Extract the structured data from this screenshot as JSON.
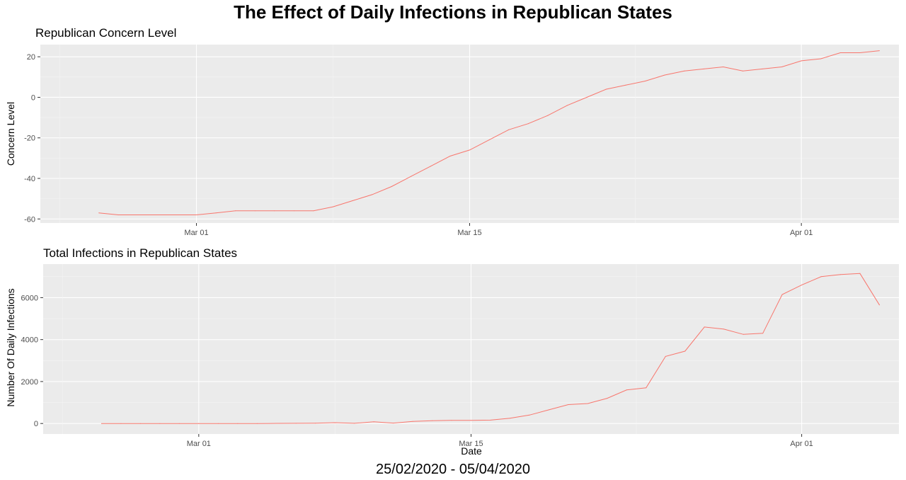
{
  "title": "The Effect of Daily Infections in Republican States",
  "footer": "25/02/2020 - 05/04/2020",
  "colors": {
    "line": "#F8766D",
    "panel": "#EBEBEB",
    "grid_major": "#FFFFFF",
    "grid_minor": "#F5F5F5"
  },
  "chart_data": [
    {
      "type": "line",
      "title": "Republican Concern Level",
      "xlabel": "",
      "ylabel": "Concern Level",
      "xlim": [
        "2020-02-22",
        "2020-04-06"
      ],
      "ylim": [
        -62,
        26
      ],
      "x_ticks": [
        "Mar 01",
        "Mar 15",
        "Apr 01"
      ],
      "y_ticks": [
        20,
        0,
        -20,
        -40,
        -60
      ],
      "grid": true,
      "x": [
        "2020-02-25",
        "2020-02-26",
        "2020-02-27",
        "2020-02-28",
        "2020-02-29",
        "2020-03-01",
        "2020-03-02",
        "2020-03-03",
        "2020-03-04",
        "2020-03-05",
        "2020-03-06",
        "2020-03-07",
        "2020-03-08",
        "2020-03-09",
        "2020-03-10",
        "2020-03-11",
        "2020-03-12",
        "2020-03-13",
        "2020-03-14",
        "2020-03-15",
        "2020-03-16",
        "2020-03-17",
        "2020-03-18",
        "2020-03-19",
        "2020-03-20",
        "2020-03-21",
        "2020-03-22",
        "2020-03-23",
        "2020-03-24",
        "2020-03-25",
        "2020-03-26",
        "2020-03-27",
        "2020-03-28",
        "2020-03-29",
        "2020-03-30",
        "2020-03-31",
        "2020-04-01",
        "2020-04-02",
        "2020-04-03",
        "2020-04-04",
        "2020-04-05"
      ],
      "values": [
        -57,
        -58,
        -58,
        -58,
        -58,
        -58,
        -57,
        -56,
        -56,
        -56,
        -56,
        -56,
        -54,
        -51,
        -48,
        -44,
        -39,
        -34,
        -29,
        -26,
        -21,
        -16,
        -13,
        -9,
        -4,
        0,
        4,
        6,
        8,
        11,
        13,
        14,
        15,
        13,
        14,
        15,
        18,
        19,
        22,
        22,
        23
      ]
    },
    {
      "type": "line",
      "title": "Total Infections in Republican States",
      "xlabel": "Date",
      "ylabel": "Number Of Daily Infections",
      "xlim": [
        "2020-02-22",
        "2020-04-06"
      ],
      "ylim": [
        -500,
        7600
      ],
      "x_ticks": [
        "Mar 01",
        "Mar 15",
        "Apr 01"
      ],
      "y_ticks": [
        6000,
        4000,
        2000,
        0
      ],
      "grid": true,
      "x": [
        "2020-02-25",
        "2020-02-26",
        "2020-02-27",
        "2020-02-28",
        "2020-02-29",
        "2020-03-01",
        "2020-03-02",
        "2020-03-03",
        "2020-03-04",
        "2020-03-05",
        "2020-03-06",
        "2020-03-07",
        "2020-03-08",
        "2020-03-09",
        "2020-03-10",
        "2020-03-11",
        "2020-03-12",
        "2020-03-13",
        "2020-03-14",
        "2020-03-15",
        "2020-03-16",
        "2020-03-17",
        "2020-03-18",
        "2020-03-19",
        "2020-03-20",
        "2020-03-21",
        "2020-03-22",
        "2020-03-23",
        "2020-03-24",
        "2020-03-25",
        "2020-03-26",
        "2020-03-27",
        "2020-03-28",
        "2020-03-29",
        "2020-03-30",
        "2020-03-31",
        "2020-04-01",
        "2020-04-02",
        "2020-04-03",
        "2020-04-04",
        "2020-04-05"
      ],
      "values": [
        0,
        0,
        0,
        0,
        0,
        0,
        0,
        0,
        0,
        5,
        10,
        15,
        40,
        10,
        80,
        20,
        100,
        130,
        150,
        150,
        160,
        250,
        400,
        650,
        900,
        950,
        1200,
        1600,
        1700,
        3200,
        3450,
        4600,
        4500,
        4250,
        4300,
        6150,
        6600,
        7000,
        7100,
        7150,
        5650
      ]
    }
  ]
}
